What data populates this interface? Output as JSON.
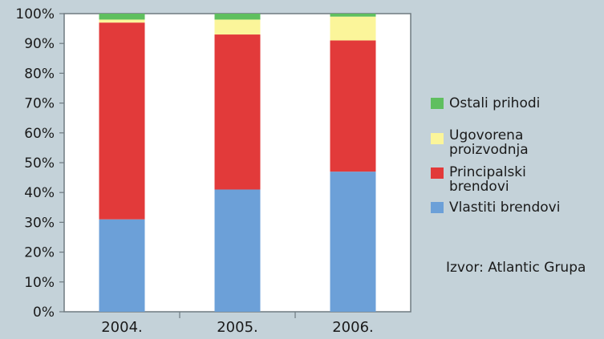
{
  "chart_data": {
    "type": "bar",
    "stacked": true,
    "categories": [
      "2004.",
      "2005.",
      "2006."
    ],
    "series": [
      {
        "name": "Vlastiti brendovi",
        "color": "#6ca0d8",
        "values": [
          31,
          41,
          47
        ]
      },
      {
        "name": "Principalski brendovi",
        "color": "#e23a3a",
        "values": [
          66,
          52,
          44
        ]
      },
      {
        "name": "Ugovorena proizvodnja",
        "color": "#fbf59a",
        "values": [
          1,
          5,
          8
        ]
      },
      {
        "name": "Ostali prihodi",
        "color": "#5fbf5f",
        "values": [
          2,
          2,
          1
        ]
      }
    ],
    "legend_order": [
      "Ostali prihodi",
      "Ugovorena proizvodnja",
      "Principalski brendovi",
      "Vlastiti brendovi"
    ],
    "ylim": [
      0,
      100
    ],
    "yticks": [
      "0%",
      "10%",
      "20%",
      "30%",
      "40%",
      "50%",
      "60%",
      "70%",
      "80%",
      "90%",
      "100%"
    ],
    "grid": false,
    "legend_position": "right",
    "plot_background": "#ffffff"
  },
  "source": "Izvor: Atlantic Grupa"
}
